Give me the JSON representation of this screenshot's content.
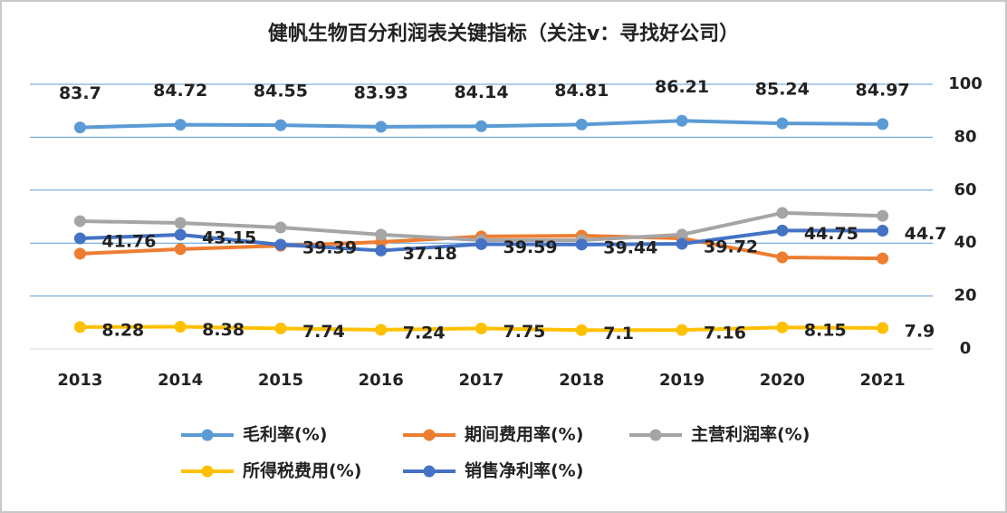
{
  "chart_data": {
    "type": "line",
    "title": "健帆生物百分利润表关键指标（关注v：寻找好公司）",
    "categories": [
      "2013",
      "2014",
      "2015",
      "2016",
      "2017",
      "2018",
      "2019",
      "2020",
      "2021"
    ],
    "series": [
      {
        "name": "毛利率(%)",
        "color": "#5b9bd5",
        "values": [
          83.7,
          84.72,
          84.55,
          83.93,
          84.14,
          84.81,
          86.21,
          85.24,
          84.97
        ],
        "labels": "above"
      },
      {
        "name": "期间费用率(%)",
        "color": "#ed7d31",
        "values": [
          36,
          37.7,
          39,
          40.4,
          42.5,
          42.8,
          41.8,
          34.6,
          34.2
        ]
      },
      {
        "name": "主营利润率(%)",
        "color": "#a5a5a5",
        "values": [
          48.3,
          47.6,
          45.9,
          43.2,
          41.1,
          41.1,
          43.2,
          51.4,
          50.3
        ]
      },
      {
        "name": "所得税费用(%)",
        "color": "#ffc000",
        "values": [
          8.28,
          8.38,
          7.74,
          7.24,
          7.75,
          7.1,
          7.16,
          8.15,
          7.9
        ],
        "labels": "right"
      },
      {
        "name": "销售净利率(%)",
        "color": "#4472c4",
        "values": [
          41.76,
          43.15,
          39.39,
          37.18,
          39.59,
          39.44,
          39.72,
          44.75,
          44.7
        ],
        "labels": "right"
      }
    ],
    "ylim": [
      0,
      100
    ],
    "yticks": [
      0,
      20,
      40,
      60,
      80,
      100
    ],
    "grid": true
  }
}
